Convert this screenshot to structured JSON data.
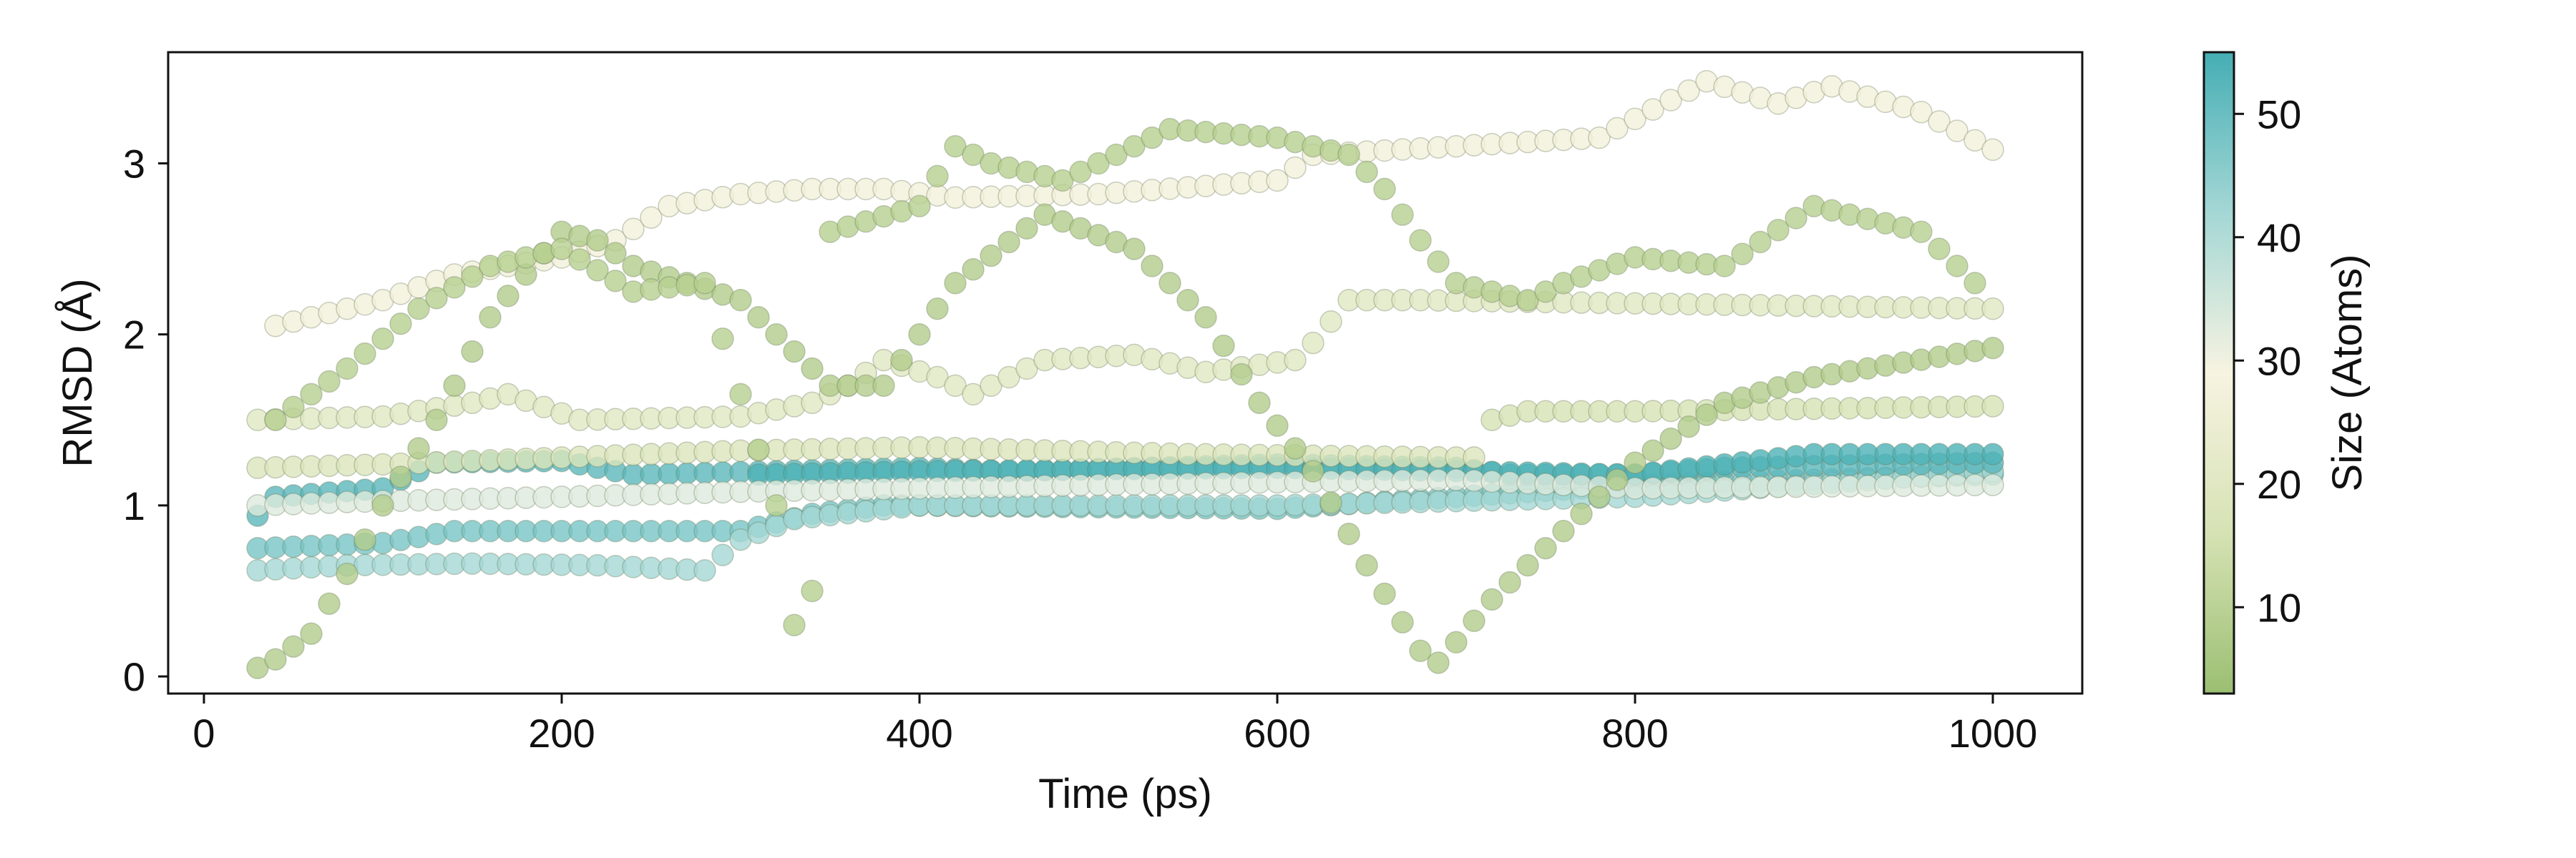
{
  "chart_data": {
    "type": "scatter",
    "title": "",
    "xlabel": "Time (ps)",
    "ylabel": "RMSD (Å)",
    "xlim": [
      -20,
      1050
    ],
    "ylim": [
      -0.1,
      3.65
    ],
    "xticks": [
      0,
      200,
      400,
      600,
      800,
      1000
    ],
    "yticks": [
      0,
      1,
      2,
      3
    ],
    "grid": false,
    "x_start": 30,
    "x_step": 10,
    "x_end": 1000,
    "colorbar": {
      "label": "Size (Atoms)",
      "min": 3,
      "max": 55,
      "ticks": [
        10,
        20,
        30,
        40,
        50
      ],
      "colors": [
        "#9bbf72",
        "#d6e2b4",
        "#f7f3e1",
        "#a4d7d5",
        "#45aeb4"
      ]
    },
    "series": [
      {
        "size": 48,
        "anchors": [
          [
            30,
            0.75
          ],
          [
            100,
            0.78
          ],
          [
            140,
            0.85
          ],
          [
            300,
            0.85
          ],
          [
            340,
            0.95
          ],
          [
            380,
            1.0
          ],
          [
            600,
            0.98
          ],
          [
            700,
            1.05
          ],
          [
            800,
            1.12
          ],
          [
            1000,
            1.18
          ]
        ]
      },
      {
        "size": 42,
        "anchors": [
          [
            30,
            0.62
          ],
          [
            80,
            0.65
          ],
          [
            150,
            0.66
          ],
          [
            220,
            0.65
          ],
          [
            280,
            0.62
          ],
          [
            300,
            0.8
          ],
          [
            330,
            0.92
          ],
          [
            400,
            1.0
          ],
          [
            600,
            1.0
          ],
          [
            800,
            1.05
          ],
          [
            1000,
            1.2
          ]
        ]
      },
      {
        "size": 52,
        "anchors": [
          [
            30,
            0.94
          ],
          [
            40,
            1.05
          ],
          [
            100,
            1.1
          ],
          [
            130,
            1.25
          ],
          [
            200,
            1.26
          ],
          [
            240,
            1.18
          ],
          [
            400,
            1.22
          ],
          [
            450,
            1.2
          ],
          [
            600,
            1.24
          ],
          [
            700,
            1.22
          ],
          [
            730,
            1.18
          ],
          [
            800,
            1.18
          ],
          [
            850,
            1.22
          ],
          [
            1000,
            1.25
          ]
        ]
      },
      {
        "size": 54,
        "anchors": [
          [
            310,
            1.18
          ],
          [
            400,
            1.2
          ],
          [
            600,
            1.22
          ],
          [
            700,
            1.2
          ],
          [
            800,
            1.18
          ],
          [
            900,
            1.3
          ],
          [
            1000,
            1.3
          ]
        ]
      },
      {
        "size": 33,
        "anchors": [
          [
            30,
            1.0
          ],
          [
            80,
            1.02
          ],
          [
            200,
            1.05
          ],
          [
            300,
            1.08
          ],
          [
            500,
            1.12
          ],
          [
            700,
            1.15
          ],
          [
            800,
            1.1
          ],
          [
            1000,
            1.12
          ]
        ]
      },
      {
        "size": 18,
        "anchors": [
          [
            30,
            1.22
          ],
          [
            100,
            1.24
          ],
          [
            200,
            1.28
          ],
          [
            300,
            1.32
          ],
          [
            400,
            1.34
          ],
          [
            550,
            1.3
          ],
          [
            700,
            1.28
          ],
          [
            710,
            1.28
          ]
        ]
      },
      {
        "size": 20,
        "anchors": [
          [
            30,
            1.5
          ],
          [
            100,
            1.52
          ],
          [
            150,
            1.6
          ],
          [
            170,
            1.65
          ],
          [
            210,
            1.5
          ],
          [
            300,
            1.52
          ],
          [
            340,
            1.6
          ],
          [
            360,
            1.7
          ],
          [
            380,
            1.85
          ],
          [
            410,
            1.75
          ],
          [
            430,
            1.65
          ],
          [
            470,
            1.85
          ],
          [
            520,
            1.88
          ],
          [
            560,
            1.78
          ],
          [
            610,
            1.85
          ],
          [
            620,
            1.95
          ],
          [
            640,
            2.2
          ],
          [
            680,
            2.2
          ],
          [
            1000,
            2.15
          ]
        ]
      },
      {
        "size": 16,
        "anchors": [
          [
            720,
            1.5
          ],
          [
            740,
            1.55
          ],
          [
            800,
            1.55
          ],
          [
            1000,
            1.58
          ]
        ]
      },
      {
        "size": 27,
        "anchors": [
          [
            40,
            2.05
          ],
          [
            100,
            2.2
          ],
          [
            140,
            2.35
          ],
          [
            200,
            2.45
          ],
          [
            230,
            2.55
          ],
          [
            260,
            2.75
          ],
          [
            300,
            2.82
          ],
          [
            340,
            2.85
          ],
          [
            380,
            2.85
          ],
          [
            420,
            2.8
          ],
          [
            500,
            2.82
          ],
          [
            600,
            2.9
          ],
          [
            620,
            3.05
          ],
          [
            700,
            3.1
          ],
          [
            780,
            3.15
          ],
          [
            840,
            3.48
          ],
          [
            880,
            3.35
          ],
          [
            910,
            3.45
          ],
          [
            960,
            3.3
          ],
          [
            1000,
            3.08
          ]
        ]
      },
      {
        "size": 8,
        "anchors": [
          [
            30,
            0.05
          ],
          [
            40,
            0.1
          ],
          [
            60,
            0.25
          ],
          [
            80,
            0.6
          ],
          [
            100,
            1.0
          ],
          [
            130,
            1.5
          ],
          [
            160,
            2.1
          ],
          [
            200,
            2.6
          ],
          [
            220,
            2.55
          ],
          [
            240,
            2.4
          ],
          [
            300,
            2.2
          ],
          [
            330,
            1.9
          ],
          [
            350,
            1.7
          ],
          [
            380,
            1.7
          ],
          [
            420,
            2.3
          ],
          [
            470,
            2.7
          ],
          [
            520,
            2.5
          ],
          [
            560,
            2.1
          ],
          [
            590,
            1.6
          ],
          [
            620,
            1.2
          ],
          [
            650,
            0.65
          ],
          [
            680,
            0.15
          ],
          [
            690,
            0.08
          ],
          [
            700,
            0.2
          ],
          [
            720,
            0.45
          ],
          [
            760,
            0.85
          ],
          [
            800,
            1.25
          ],
          [
            850,
            1.6
          ],
          [
            900,
            1.75
          ],
          [
            1000,
            1.92
          ]
        ]
      },
      {
        "size": 9,
        "anchors": [
          [
            40,
            1.5
          ],
          [
            80,
            1.8
          ],
          [
            120,
            2.15
          ],
          [
            160,
            2.4
          ],
          [
            200,
            2.5
          ],
          [
            240,
            2.25
          ],
          [
            280,
            2.3
          ],
          [
            320,
            1.0
          ],
          [
            330,
            0.3
          ],
          [
            340,
            0.5
          ],
          [
            350,
            2.6
          ],
          [
            400,
            2.75
          ],
          [
            420,
            3.1
          ],
          [
            440,
            3.0
          ],
          [
            480,
            2.9
          ],
          [
            520,
            3.1
          ],
          [
            540,
            3.2
          ],
          [
            600,
            3.15
          ],
          [
            640,
            3.05
          ],
          [
            660,
            2.85
          ],
          [
            680,
            2.55
          ],
          [
            700,
            2.3
          ],
          [
            740,
            2.2
          ],
          [
            760,
            2.3
          ],
          [
            800,
            2.45
          ],
          [
            850,
            2.4
          ],
          [
            900,
            2.75
          ],
          [
            960,
            2.6
          ],
          [
            990,
            2.3
          ]
        ]
      }
    ]
  }
}
